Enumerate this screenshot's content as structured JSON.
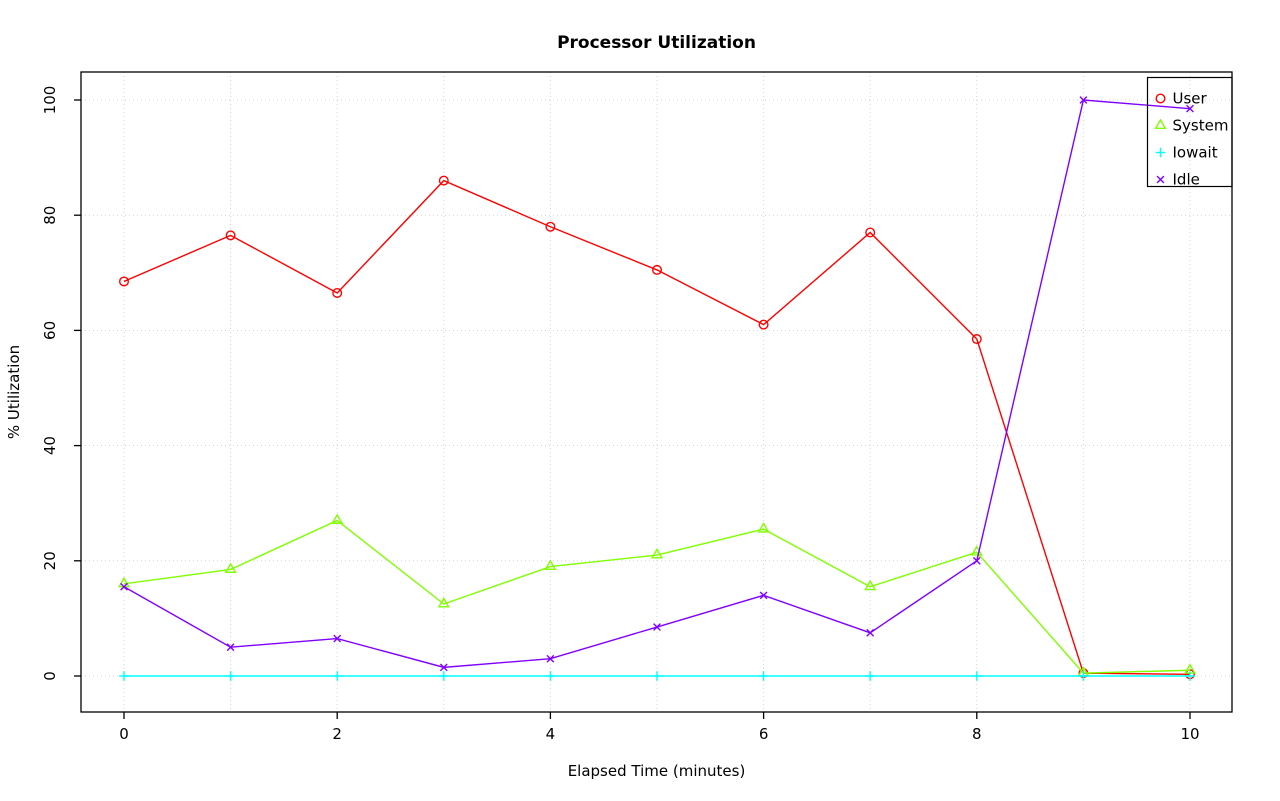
{
  "chart_data": {
    "type": "line",
    "title": "Processor Utilization",
    "xlabel": "Elapsed Time (minutes)",
    "ylabel": "% Utilization",
    "x": [
      0,
      1,
      2,
      3,
      4,
      5,
      6,
      7,
      8,
      9,
      10
    ],
    "xlim": [
      0,
      10
    ],
    "ylim": [
      0,
      100
    ],
    "x_ticks": [
      0,
      2,
      4,
      6,
      8,
      10
    ],
    "y_ticks": [
      0,
      20,
      40,
      60,
      80,
      100
    ],
    "x_grid": [
      0,
      1,
      2,
      3,
      4,
      5,
      6,
      7,
      8,
      9,
      10
    ],
    "y_grid": [
      0,
      20,
      40,
      60,
      80,
      100
    ],
    "grid": true,
    "legend": {
      "position": "top-right",
      "entries": [
        "User",
        "System",
        "Iowait",
        "Idle"
      ]
    },
    "series": [
      {
        "name": "User",
        "color": "#FF0000",
        "marker": "circle-open",
        "values": [
          68.5,
          76.5,
          66.5,
          86,
          78,
          70.5,
          61,
          77,
          58.5,
          0.5,
          0.3
        ]
      },
      {
        "name": "System",
        "color": "#80FF00",
        "marker": "triangle-open",
        "values": [
          16,
          18.5,
          27,
          12.5,
          19,
          21,
          25.5,
          15.5,
          21.5,
          0.5,
          1
        ]
      },
      {
        "name": "Iowait",
        "color": "#00FFFF",
        "marker": "plus",
        "values": [
          0,
          0,
          0,
          0,
          0,
          0,
          0,
          0,
          0,
          0,
          0
        ]
      },
      {
        "name": "Idle",
        "color": "#8000FF",
        "marker": "x",
        "values": [
          15.5,
          5,
          6.5,
          1.5,
          3,
          8.5,
          14,
          7.5,
          20,
          100,
          98.5
        ]
      }
    ]
  },
  "style": {
    "background": "#FFFFFF",
    "axis_color": "#000000",
    "grid_color": "#D3D3D3",
    "text_color": "#000000"
  }
}
